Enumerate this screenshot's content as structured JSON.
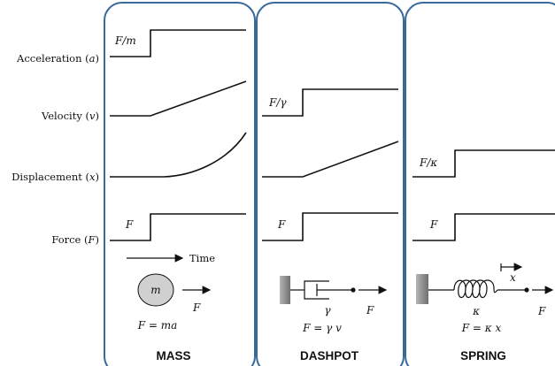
{
  "row_labels": {
    "acceleration": {
      "text": "Acceleration (",
      "sym": "a",
      "close": ")"
    },
    "velocity": {
      "text": "Velocity (",
      "sym": "v",
      "close": ")"
    },
    "displacement": {
      "text": "Displacement (",
      "sym": "x",
      "close": ")"
    },
    "force": {
      "text": "Force (",
      "sym": "F",
      "close": ")"
    }
  },
  "time_label": "Time",
  "mass": {
    "title": "MASS",
    "accel_level": "F/m",
    "force_level": "F",
    "body_symbol": "m",
    "force_symbol": "F",
    "equation": "F = ma"
  },
  "dashpot": {
    "title": "DASHPOT",
    "velocity_level": "F/γ",
    "force_level": "F",
    "damping_symbol": "γ",
    "force_symbol": "F",
    "equation": "F = γ v"
  },
  "spring": {
    "title": "SPRING",
    "displacement_level": "F/κ",
    "force_level": "F",
    "stiffness_symbol": "κ",
    "extension_symbol": "x",
    "force_symbol": "F",
    "equation": "F = κ x"
  },
  "colors": {
    "panel_border": "#3a6a9a",
    "ink": "#111111",
    "mass_fill": "#d0d0d0",
    "wall_fill": "#8a8a8a"
  }
}
